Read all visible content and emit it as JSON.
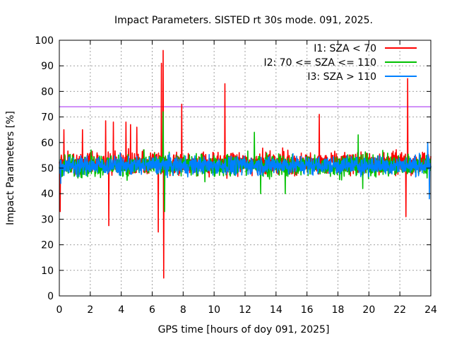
{
  "chart_data": {
    "type": "line",
    "title": "Impact Parameters. SISTED rt 30s mode. 091, 2025.",
    "xlabel": "GPS time [hours of doy 091, 2025]",
    "ylabel": "Impact Parameters [%]",
    "xlim": [
      0,
      24
    ],
    "ylim": [
      0,
      100
    ],
    "xticks": [
      "0",
      "2",
      "4",
      "6",
      "8",
      "10",
      "12",
      "14",
      "16",
      "18",
      "20",
      "22",
      "24"
    ],
    "yticks": [
      "0",
      "10",
      "20",
      "30",
      "40",
      "50",
      "60",
      "70",
      "80",
      "90",
      "100"
    ],
    "grid": true,
    "legend_position": "top-right",
    "threshold": {
      "value": 74,
      "color": "#a020f0"
    },
    "series": [
      {
        "name": "I1: SZA < 70",
        "color": "#ff0000",
        "baseline": 52,
        "min": 46,
        "max": 58,
        "spikes": [
          {
            "x": 0.05,
            "y": 33
          },
          {
            "x": 0.3,
            "y": 65
          },
          {
            "x": 1.5,
            "y": 65
          },
          {
            "x": 3.0,
            "y": 68.5
          },
          {
            "x": 3.2,
            "y": 27.5
          },
          {
            "x": 3.5,
            "y": 68
          },
          {
            "x": 4.3,
            "y": 68
          },
          {
            "x": 4.6,
            "y": 67
          },
          {
            "x": 5.0,
            "y": 66
          },
          {
            "x": 6.4,
            "y": 25
          },
          {
            "x": 6.6,
            "y": 91
          },
          {
            "x": 6.7,
            "y": 96
          },
          {
            "x": 6.75,
            "y": 7
          },
          {
            "x": 7.9,
            "y": 75
          },
          {
            "x": 10.7,
            "y": 83
          },
          {
            "x": 16.8,
            "y": 71
          },
          {
            "x": 22.4,
            "y": 31
          },
          {
            "x": 22.5,
            "y": 85
          }
        ]
      },
      {
        "name": "I2: 70 <= SZA <= 110",
        "color": "#00c000",
        "baseline": 51,
        "min": 45,
        "max": 57,
        "spikes": [
          {
            "x": 6.7,
            "y": 72
          },
          {
            "x": 6.8,
            "y": 33
          },
          {
            "x": 12.6,
            "y": 64
          },
          {
            "x": 13.0,
            "y": 40
          },
          {
            "x": 14.6,
            "y": 40
          },
          {
            "x": 19.3,
            "y": 63
          },
          {
            "x": 19.6,
            "y": 42
          }
        ]
      },
      {
        "name": "I3: SZA > 110",
        "color": "#0080ff",
        "baseline": 51,
        "min": 46,
        "max": 56,
        "spikes": [
          {
            "x": 0.1,
            "y": 44
          },
          {
            "x": 23.9,
            "y": 38
          },
          {
            "x": 23.8,
            "y": 60
          }
        ]
      }
    ]
  }
}
